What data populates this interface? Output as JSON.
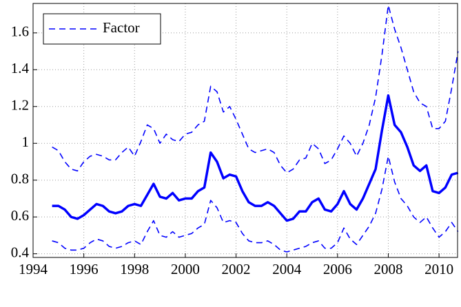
{
  "chart_data": {
    "type": "line",
    "x": [
      1994.75,
      1995,
      1995.25,
      1995.5,
      1995.75,
      1996,
      1996.25,
      1996.5,
      1996.75,
      1997,
      1997.25,
      1997.5,
      1997.75,
      1998,
      1998.25,
      1998.5,
      1998.75,
      1999,
      1999.25,
      1999.5,
      1999.75,
      2000,
      2000.25,
      2000.5,
      2000.75,
      2001,
      2001.25,
      2001.5,
      2001.75,
      2002,
      2002.25,
      2002.5,
      2002.75,
      2003,
      2003.25,
      2003.5,
      2003.75,
      2004,
      2004.25,
      2004.5,
      2004.75,
      2005,
      2005.25,
      2005.5,
      2005.75,
      2006,
      2006.25,
      2006.5,
      2006.75,
      2007,
      2007.25,
      2007.5,
      2007.75,
      2008,
      2008.25,
      2008.5,
      2008.75,
      2009,
      2009.25,
      2009.5,
      2009.75,
      2010,
      2010.25,
      2010.5,
      2010.75
    ],
    "series": [
      {
        "color": "#0000ff",
        "line_style": "solid",
        "values": [
          0.66,
          0.66,
          0.64,
          0.6,
          0.59,
          0.61,
          0.64,
          0.67,
          0.66,
          0.63,
          0.62,
          0.63,
          0.66,
          0.67,
          0.66,
          0.72,
          0.78,
          0.71,
          0.7,
          0.73,
          0.69,
          0.7,
          0.7,
          0.74,
          0.76,
          0.95,
          0.9,
          0.81,
          0.83,
          0.82,
          0.74,
          0.68,
          0.66,
          0.66,
          0.68,
          0.66,
          0.62,
          0.58,
          0.59,
          0.63,
          0.63,
          0.68,
          0.7,
          0.64,
          0.63,
          0.67,
          0.74,
          0.67,
          0.64,
          0.7,
          0.78,
          0.86,
          1.07,
          1.26,
          1.1,
          1.06,
          0.98,
          0.88,
          0.85,
          0.88,
          0.74,
          0.73,
          0.76,
          0.83,
          0.84
        ]
      },
      {
        "name": "Factor",
        "color": "#0000ff",
        "line_style": "dashed",
        "values": [
          0.98,
          0.96,
          0.9,
          0.86,
          0.85,
          0.9,
          0.93,
          0.94,
          0.93,
          0.91,
          0.91,
          0.95,
          0.98,
          0.93,
          1.01,
          1.1,
          1.08,
          1.0,
          1.05,
          1.02,
          1.01,
          1.05,
          1.06,
          1.1,
          1.12,
          1.31,
          1.28,
          1.17,
          1.2,
          1.13,
          1.05,
          0.97,
          0.95,
          0.96,
          0.97,
          0.95,
          0.88,
          0.84,
          0.86,
          0.91,
          0.92,
          1.0,
          0.97,
          0.89,
          0.91,
          0.97,
          1.04,
          1.0,
          0.93,
          1.0,
          1.1,
          1.25,
          1.48,
          1.75,
          1.62,
          1.52,
          1.4,
          1.28,
          1.22,
          1.2,
          1.08,
          1.08,
          1.12,
          1.3,
          1.5
        ]
      },
      {
        "color": "#0000ff",
        "line_style": "dashed",
        "values": [
          0.47,
          0.46,
          0.43,
          0.42,
          0.42,
          0.43,
          0.46,
          0.48,
          0.47,
          0.44,
          0.43,
          0.44,
          0.46,
          0.47,
          0.45,
          0.52,
          0.58,
          0.5,
          0.49,
          0.52,
          0.49,
          0.5,
          0.51,
          0.54,
          0.56,
          0.69,
          0.65,
          0.57,
          0.58,
          0.57,
          0.51,
          0.47,
          0.46,
          0.46,
          0.47,
          0.45,
          0.42,
          0.41,
          0.42,
          0.43,
          0.44,
          0.46,
          0.47,
          0.43,
          0.43,
          0.46,
          0.54,
          0.48,
          0.45,
          0.5,
          0.55,
          0.62,
          0.75,
          0.93,
          0.79,
          0.7,
          0.66,
          0.6,
          0.57,
          0.6,
          0.54,
          0.49,
          0.52,
          0.57,
          0.52
        ]
      }
    ],
    "xlim": [
      1994,
      2010.73
    ],
    "xticks": [
      1994,
      1996,
      1998,
      2000,
      2002,
      2004,
      2006,
      2008,
      2010
    ],
    "ylim": [
      0.38,
      1.76
    ],
    "yticks": [
      0.4,
      0.6,
      0.8,
      1,
      1.2,
      1.4,
      1.6
    ],
    "grid": true,
    "legend": "upper left"
  }
}
